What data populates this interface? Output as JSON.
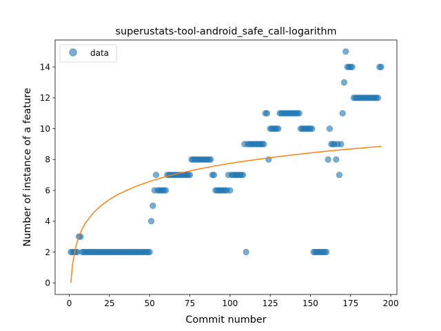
{
  "chart_data": {
    "type": "scatter",
    "title": "superustats-tool-android_safe_call-logarithm",
    "xlabel": "Commit number",
    "ylabel": "Number of instance of a feature",
    "xlim": [
      -8.8,
      203.8
    ],
    "ylim": [
      -0.75,
      15.75
    ],
    "xticks": [
      0,
      25,
      50,
      75,
      100,
      125,
      150,
      175,
      200
    ],
    "yticks": [
      0,
      2,
      4,
      6,
      8,
      10,
      12,
      14
    ],
    "grid": false,
    "legend": {
      "position": "top-left",
      "entries": [
        "data"
      ]
    },
    "series": [
      {
        "name": "data",
        "kind": "scatter",
        "color": "#1f77b4",
        "points": [
          [
            1,
            2
          ],
          [
            2,
            2
          ],
          [
            3,
            2
          ],
          [
            4,
            2
          ],
          [
            5,
            2
          ],
          [
            6,
            3
          ],
          [
            7,
            3
          ],
          [
            8,
            2
          ],
          [
            9,
            2
          ],
          [
            10,
            2
          ],
          [
            11,
            2
          ],
          [
            12,
            2
          ],
          [
            13,
            2
          ],
          [
            14,
            2
          ],
          [
            15,
            2
          ],
          [
            16,
            2
          ],
          [
            17,
            2
          ],
          [
            18,
            2
          ],
          [
            19,
            2
          ],
          [
            20,
            2
          ],
          [
            21,
            2
          ],
          [
            22,
            2
          ],
          [
            23,
            2
          ],
          [
            24,
            2
          ],
          [
            25,
            2
          ],
          [
            26,
            2
          ],
          [
            27,
            2
          ],
          [
            28,
            2
          ],
          [
            29,
            2
          ],
          [
            30,
            2
          ],
          [
            31,
            2
          ],
          [
            32,
            2
          ],
          [
            33,
            2
          ],
          [
            34,
            2
          ],
          [
            35,
            2
          ],
          [
            36,
            2
          ],
          [
            37,
            2
          ],
          [
            38,
            2
          ],
          [
            39,
            2
          ],
          [
            40,
            2
          ],
          [
            41,
            2
          ],
          [
            42,
            2
          ],
          [
            43,
            2
          ],
          [
            44,
            2
          ],
          [
            45,
            2
          ],
          [
            46,
            2
          ],
          [
            47,
            2
          ],
          [
            48,
            2
          ],
          [
            49,
            2
          ],
          [
            50,
            2
          ],
          [
            51,
            4
          ],
          [
            52,
            5
          ],
          [
            53,
            6
          ],
          [
            54,
            7
          ],
          [
            55,
            6
          ],
          [
            56,
            6
          ],
          [
            57,
            6
          ],
          [
            58,
            6
          ],
          [
            59,
            6
          ],
          [
            60,
            6
          ],
          [
            61,
            7
          ],
          [
            62,
            7
          ],
          [
            63,
            7
          ],
          [
            64,
            7
          ],
          [
            65,
            7
          ],
          [
            66,
            7
          ],
          [
            67,
            7
          ],
          [
            68,
            7
          ],
          [
            69,
            7
          ],
          [
            70,
            7
          ],
          [
            71,
            7
          ],
          [
            72,
            7
          ],
          [
            73,
            7
          ],
          [
            74,
            7
          ],
          [
            75,
            7
          ],
          [
            76,
            8
          ],
          [
            77,
            8
          ],
          [
            78,
            8
          ],
          [
            79,
            8
          ],
          [
            80,
            8
          ],
          [
            81,
            8
          ],
          [
            82,
            8
          ],
          [
            83,
            8
          ],
          [
            84,
            8
          ],
          [
            85,
            8
          ],
          [
            86,
            8
          ],
          [
            87,
            8
          ],
          [
            88,
            8
          ],
          [
            89,
            7
          ],
          [
            90,
            7
          ],
          [
            91,
            6
          ],
          [
            92,
            6
          ],
          [
            93,
            6
          ],
          [
            94,
            6
          ],
          [
            95,
            6
          ],
          [
            96,
            6
          ],
          [
            97,
            6
          ],
          [
            98,
            6
          ],
          [
            99,
            7
          ],
          [
            100,
            6
          ],
          [
            101,
            7
          ],
          [
            102,
            7
          ],
          [
            103,
            7
          ],
          [
            104,
            7
          ],
          [
            105,
            7
          ],
          [
            106,
            7
          ],
          [
            107,
            7
          ],
          [
            108,
            7
          ],
          [
            109,
            9
          ],
          [
            110,
            2
          ],
          [
            111,
            9
          ],
          [
            112,
            9
          ],
          [
            113,
            9
          ],
          [
            114,
            9
          ],
          [
            115,
            9
          ],
          [
            116,
            9
          ],
          [
            117,
            9
          ],
          [
            118,
            9
          ],
          [
            119,
            9
          ],
          [
            120,
            9
          ],
          [
            121,
            9
          ],
          [
            122,
            11
          ],
          [
            123,
            11
          ],
          [
            124,
            8
          ],
          [
            125,
            10
          ],
          [
            126,
            10
          ],
          [
            127,
            10
          ],
          [
            128,
            10
          ],
          [
            129,
            10
          ],
          [
            130,
            10
          ],
          [
            131,
            11
          ],
          [
            132,
            11
          ],
          [
            133,
            11
          ],
          [
            134,
            11
          ],
          [
            135,
            11
          ],
          [
            136,
            11
          ],
          [
            137,
            11
          ],
          [
            138,
            11
          ],
          [
            139,
            11
          ],
          [
            140,
            11
          ],
          [
            141,
            11
          ],
          [
            142,
            11
          ],
          [
            143,
            11
          ],
          [
            144,
            10
          ],
          [
            145,
            10
          ],
          [
            146,
            10
          ],
          [
            147,
            10
          ],
          [
            148,
            10
          ],
          [
            149,
            10
          ],
          [
            150,
            10
          ],
          [
            151,
            10
          ],
          [
            152,
            2
          ],
          [
            153,
            2
          ],
          [
            154,
            2
          ],
          [
            155,
            2
          ],
          [
            156,
            2
          ],
          [
            157,
            2
          ],
          [
            158,
            2
          ],
          [
            159,
            2
          ],
          [
            160,
            2
          ],
          [
            161,
            8
          ],
          [
            162,
            10
          ],
          [
            163,
            9
          ],
          [
            164,
            9
          ],
          [
            165,
            9
          ],
          [
            166,
            8
          ],
          [
            167,
            9
          ],
          [
            168,
            7
          ],
          [
            169,
            9
          ],
          [
            170,
            11
          ],
          [
            171,
            13
          ],
          [
            172,
            15
          ],
          [
            173,
            14
          ],
          [
            174,
            14
          ],
          [
            175,
            14
          ],
          [
            176,
            14
          ],
          [
            177,
            12
          ],
          [
            178,
            12
          ],
          [
            179,
            12
          ],
          [
            180,
            12
          ],
          [
            181,
            12
          ],
          [
            182,
            12
          ],
          [
            183,
            12
          ],
          [
            184,
            12
          ],
          [
            185,
            12
          ],
          [
            186,
            12
          ],
          [
            187,
            12
          ],
          [
            188,
            12
          ],
          [
            189,
            12
          ],
          [
            190,
            12
          ],
          [
            191,
            12
          ],
          [
            192,
            12
          ],
          [
            193,
            14
          ],
          [
            194,
            14
          ]
        ]
      },
      {
        "kind": "line",
        "color": "#ff7f0e",
        "fit": "logarithmic",
        "x": [
          1,
          2,
          4,
          6,
          8,
          10,
          15,
          20,
          25,
          30,
          40,
          50,
          60,
          70,
          80,
          90,
          100,
          110,
          120,
          130,
          140,
          150,
          160,
          170,
          180,
          194
        ],
        "y": [
          0.0,
          1.16,
          2.33,
          3.01,
          3.49,
          3.87,
          4.55,
          5.03,
          5.41,
          5.72,
          6.2,
          6.58,
          6.89,
          7.15,
          7.37,
          7.57,
          7.75,
          7.91,
          8.05,
          8.19,
          8.31,
          8.43,
          8.54,
          8.64,
          8.73,
          8.85
        ]
      }
    ]
  }
}
